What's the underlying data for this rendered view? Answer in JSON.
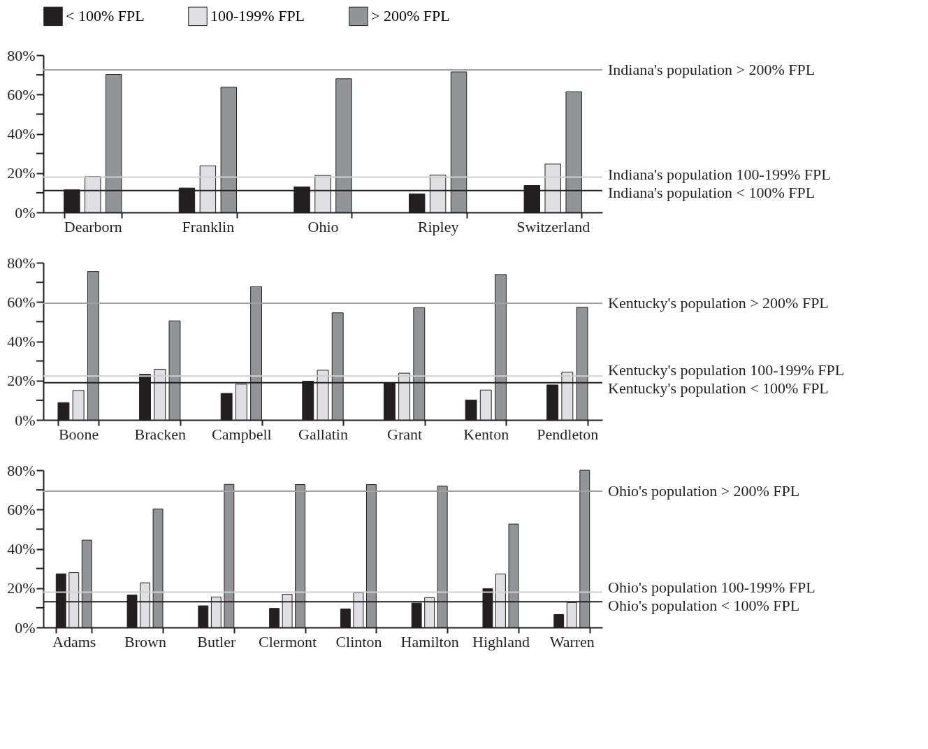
{
  "chart_data": [
    {
      "type": "bar",
      "categories": [
        "Dearborn",
        "Franklin",
        "Ohio",
        "Ripley",
        "Switzerland"
      ],
      "legend": "top",
      "grid": false,
      "series": [
        {
          "name": "< 100% FPL",
          "color": "#231f20",
          "values": [
            11.5,
            12.4,
            13,
            9.4,
            13.7
          ]
        },
        {
          "name": "100-199% FPL",
          "color": "#e0e0e2",
          "values": [
            18.2,
            23.7,
            18.8,
            19,
            24.6
          ]
        },
        {
          "name": "> 200% FPL",
          "color": "#939495",
          "values": [
            70.2,
            63.7,
            68,
            71.5,
            61.4
          ]
        }
      ],
      "ylim": [
        0,
        80
      ],
      "yticks": [
        {
          "value": 0,
          "label": "0%"
        },
        {
          "value": 10,
          "label": null
        },
        {
          "value": 20,
          "label": "20%"
        },
        {
          "value": 30,
          "label": null
        },
        {
          "value": 40,
          "label": "40%"
        },
        {
          "value": 50,
          "label": null
        },
        {
          "value": 60,
          "label": "60%"
        },
        {
          "value": 70,
          "label": null
        },
        {
          "value": 80,
          "label": "80%"
        }
      ],
      "ref_lines": [
        {
          "axis": "y",
          "value": 72.5,
          "label": "Indiana's population > 200% FPL",
          "color": "#a0a0a0"
        },
        {
          "axis": "y",
          "value": 18,
          "label": "Indiana's population 100-199% FPL",
          "color": "#cfcfcf"
        },
        {
          "axis": "y",
          "value": 11.1,
          "label": "Indiana's population < 100% FPL",
          "color": "#231f20"
        }
      ]
    },
    {
      "type": "bar",
      "categories": [
        "Boone",
        "Bracken",
        "Campbell",
        "Gallatin",
        "Grant",
        "Kenton",
        "Pendleton"
      ],
      "grid": false,
      "series": [
        {
          "name": "< 100% FPL",
          "color": "#231f20",
          "values": [
            8.8,
            23.2,
            13.5,
            19.7,
            18.9,
            10.1,
            17.8
          ]
        },
        {
          "name": "100-199% FPL",
          "color": "#e0e0e2",
          "values": [
            15,
            25.8,
            18.2,
            25.3,
            23.8,
            15.2,
            24.3
          ]
        },
        {
          "name": "> 200% FPL",
          "color": "#939495",
          "values": [
            75.5,
            50.4,
            67.8,
            54.5,
            57.1,
            74,
            57.3
          ]
        }
      ],
      "ylim": [
        0,
        80
      ],
      "yticks": [
        {
          "value": 0,
          "label": "0%"
        },
        {
          "value": 10,
          "label": null
        },
        {
          "value": 20,
          "label": "20%"
        },
        {
          "value": 30,
          "label": null
        },
        {
          "value": 40,
          "label": "40%"
        },
        {
          "value": 50,
          "label": null
        },
        {
          "value": 60,
          "label": "60%"
        },
        {
          "value": 70,
          "label": null
        },
        {
          "value": 80,
          "label": "80%"
        }
      ],
      "ref_lines": [
        {
          "axis": "y",
          "value": 59.4,
          "label": "Kentucky's population > 200% FPL",
          "color": "#a0a0a0"
        },
        {
          "axis": "y",
          "value": 22.3,
          "label": "Kentucky's population 100-199% FPL",
          "color": "#cfcfcf"
        },
        {
          "axis": "y",
          "value": 18.9,
          "label": "Kentucky's population < 100% FPL",
          "color": "#231f20"
        }
      ]
    },
    {
      "type": "bar",
      "categories": [
        "Adams",
        "Brown",
        "Butler",
        "Clermont",
        "Clinton",
        "Hamilton",
        "Highland",
        "Warren"
      ],
      "grid": false,
      "series": [
        {
          "name": "< 100% FPL",
          "color": "#231f20",
          "values": [
            27.3,
            16.5,
            11,
            9.7,
            9.4,
            12.4,
            19.7,
            6.6
          ]
        },
        {
          "name": "100-199% FPL",
          "color": "#e0e0e2",
          "values": [
            27.9,
            22.7,
            15.5,
            16.9,
            17.6,
            15.2,
            27.2,
            12.7
          ]
        },
        {
          "name": "> 200% FPL",
          "color": "#939495",
          "values": [
            44.4,
            60.3,
            72.8,
            72.7,
            72.7,
            71.9,
            52.6,
            80
          ]
        }
      ],
      "ylim": [
        0,
        80
      ],
      "yticks": [
        {
          "value": 0,
          "label": "0%"
        },
        {
          "value": 10,
          "label": null
        },
        {
          "value": 20,
          "label": "20%"
        },
        {
          "value": 30,
          "label": null
        },
        {
          "value": 40,
          "label": "40%"
        },
        {
          "value": 50,
          "label": null
        },
        {
          "value": 60,
          "label": "60%"
        },
        {
          "value": 70,
          "label": null
        },
        {
          "value": 80,
          "label": "80%"
        }
      ],
      "ref_lines": [
        {
          "axis": "y",
          "value": 69.3,
          "label": "Ohio's population > 200% FPL",
          "color": "#a0a0a0"
        },
        {
          "axis": "y",
          "value": 18,
          "label": "Ohio's population 100-199% FPL",
          "color": "#cfcfcf"
        },
        {
          "axis": "y",
          "value": 13.1,
          "label": "Ohio's population < 100% FPL",
          "color": "#231f20"
        }
      ]
    }
  ]
}
